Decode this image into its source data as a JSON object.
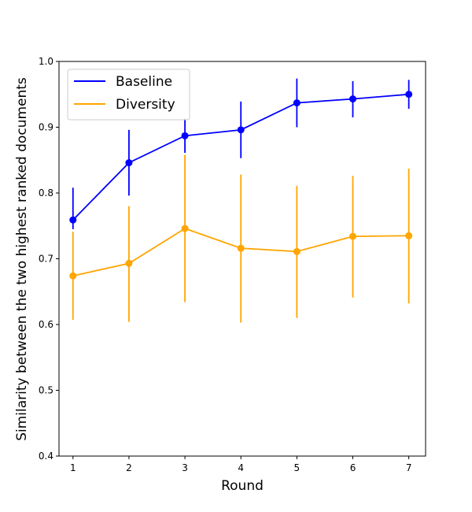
{
  "chart_data": {
    "type": "line",
    "title": "",
    "xlabel": "Round",
    "ylabel": "Similarity between the two highest ranked documents",
    "x": [
      1,
      2,
      3,
      4,
      5,
      6,
      7
    ],
    "xlim": [
      0.75,
      7.3
    ],
    "ylim": [
      0.4,
      1.0
    ],
    "yticks": [
      "0.4",
      "0.5",
      "0.6",
      "0.7",
      "0.8",
      "0.9",
      "1.0"
    ],
    "xticks": [
      "1",
      "2",
      "3",
      "4",
      "5",
      "6",
      "7"
    ],
    "grid": false,
    "legend_position": "upper-left",
    "series": [
      {
        "name": "Baseline",
        "color": "#0000ff",
        "values": [
          0.759,
          0.846,
          0.887,
          0.896,
          0.937,
          0.943,
          0.95
        ],
        "err_low": [
          0.745,
          0.796,
          0.861,
          0.853,
          0.9,
          0.915,
          0.928
        ],
        "err_high": [
          0.808,
          0.896,
          0.913,
          0.939,
          0.974,
          0.97,
          0.972
        ]
      },
      {
        "name": "Diversity",
        "color": "#ffa500",
        "values": [
          0.674,
          0.693,
          0.746,
          0.716,
          0.711,
          0.734,
          0.735
        ],
        "err_low": [
          0.607,
          0.604,
          0.634,
          0.603,
          0.61,
          0.641,
          0.632
        ],
        "err_high": [
          0.741,
          0.78,
          0.858,
          0.828,
          0.811,
          0.826,
          0.837
        ]
      }
    ]
  }
}
